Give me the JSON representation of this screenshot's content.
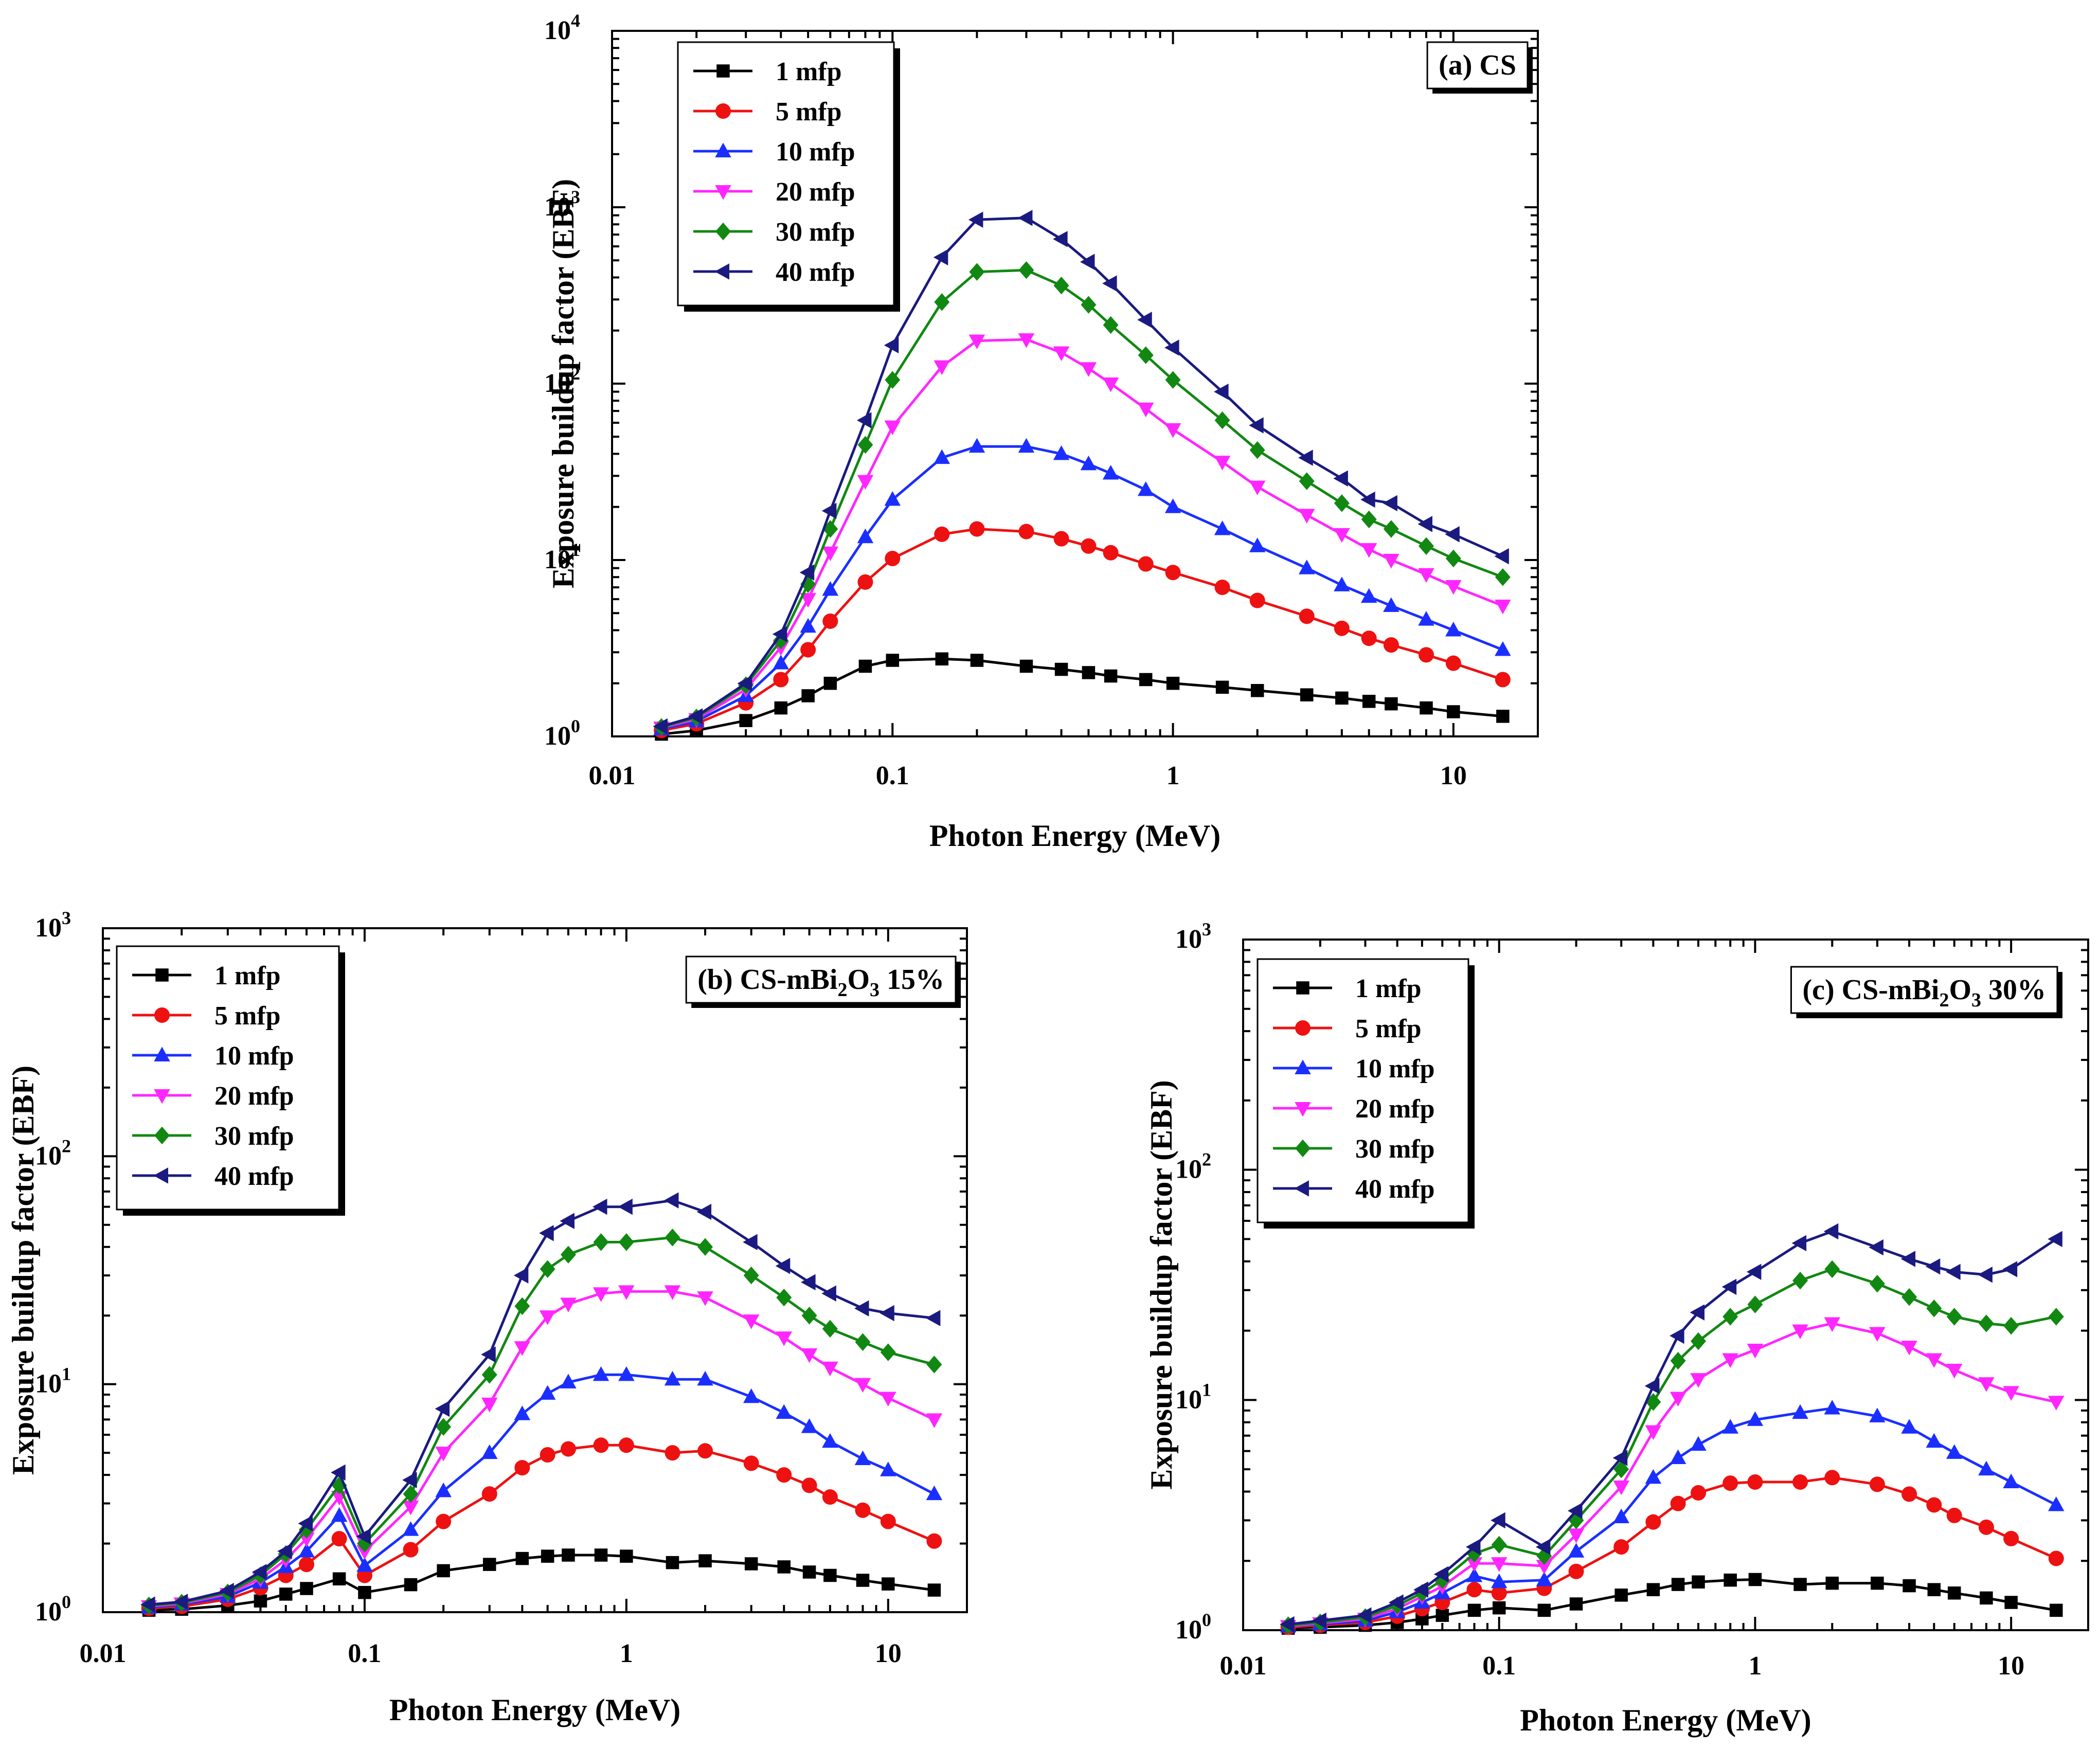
{
  "figure": {
    "panels_count": 3,
    "colors": {
      "1 mfp": "#000000",
      "5 mfp": "#ee1111",
      "10 mfp": "#1a2fff",
      "20 mfp": "#ff26ff",
      "30 mfp": "#118811",
      "40 mfp": "#1a1a80"
    }
  },
  "chart_data": [
    {
      "type": "line",
      "id": "a",
      "panel_label": "(a) CS",
      "panel_label_parts": {
        "prefix": "(a) CS",
        "sub": "",
        "suffix": ""
      },
      "title": "",
      "xlabel": "Photon Energy (MeV)",
      "ylabel": "Exposure buildup factor (EBF)",
      "xscale": "log",
      "yscale": "log",
      "xlim": [
        0.01,
        20
      ],
      "ylim": [
        1,
        10000
      ],
      "x_ticks": [
        "0.01",
        "0.1",
        "1",
        "10"
      ],
      "y_ticks": [
        {
          "base": "10",
          "exp": "0"
        },
        {
          "base": "10",
          "exp": "1"
        },
        {
          "base": "10",
          "exp": "2"
        },
        {
          "base": "10",
          "exp": "3"
        },
        {
          "base": "10",
          "exp": "4"
        }
      ],
      "legend_position": "top-left",
      "x": [
        0.015,
        0.02,
        0.03,
        0.04,
        0.05,
        0.06,
        0.08,
        0.1,
        0.15,
        0.2,
        0.3,
        0.4,
        0.5,
        0.6,
        0.8,
        1,
        1.5,
        2,
        3,
        4,
        5,
        6,
        8,
        10,
        15
      ],
      "series": [
        {
          "name": "1 mfp",
          "marker": "square",
          "values": [
            1.03,
            1.08,
            1.23,
            1.45,
            1.7,
            2.0,
            2.5,
            2.7,
            2.75,
            2.7,
            2.5,
            2.4,
            2.3,
            2.2,
            2.1,
            2.0,
            1.9,
            1.82,
            1.72,
            1.65,
            1.58,
            1.53,
            1.45,
            1.38,
            1.3
          ]
        },
        {
          "name": "5 mfp",
          "marker": "circle",
          "values": [
            1.08,
            1.18,
            1.55,
            2.1,
            3.1,
            4.5,
            7.5,
            10.2,
            14,
            15,
            14.5,
            13.2,
            12,
            11,
            9.5,
            8.5,
            7,
            5.9,
            4.8,
            4.1,
            3.6,
            3.3,
            2.9,
            2.6,
            2.1
          ]
        },
        {
          "name": "10 mfp",
          "marker": "triangle-up",
          "values": [
            1.1,
            1.22,
            1.7,
            2.6,
            4.2,
            6.8,
            13.5,
            22,
            38,
            44,
            44,
            40,
            35,
            31,
            25,
            20,
            15,
            12,
            9,
            7.2,
            6.2,
            5.5,
            4.6,
            4.0,
            3.1
          ]
        },
        {
          "name": "20 mfp",
          "marker": "triangle-down",
          "values": [
            1.12,
            1.25,
            1.85,
            3.2,
            6.0,
            11,
            28,
            57,
            125,
            175,
            178,
            150,
            122,
            100,
            72,
            55,
            36,
            26,
            18,
            14,
            11.5,
            10,
            8.3,
            7.1,
            5.5
          ]
        },
        {
          "name": "30 mfp",
          "marker": "diamond",
          "values": [
            1.13,
            1.28,
            1.95,
            3.5,
            7.3,
            15,
            45,
            105,
            290,
            430,
            440,
            360,
            280,
            215,
            145,
            105,
            62,
            42,
            28,
            21,
            17,
            15,
            12,
            10.2,
            8.0
          ]
        },
        {
          "name": "40 mfp",
          "marker": "triangle-left",
          "values": [
            1.14,
            1.3,
            2.0,
            3.8,
            8.5,
            19,
            62,
            165,
            520,
            850,
            870,
            660,
            490,
            370,
            230,
            160,
            90,
            58,
            38,
            29,
            22,
            21,
            16,
            14,
            10.5
          ]
        }
      ]
    },
    {
      "type": "line",
      "id": "b",
      "panel_label": "(b)  CS-mBi2O3 15%",
      "panel_label_parts": {
        "prefix": "(b)  CS-mBi",
        "sub": "2",
        "mid": "O",
        "sub2": "3",
        "suffix": " 15%"
      },
      "title": "",
      "xlabel": "Photon Energy (MeV)",
      "ylabel": "Exposure buildup factor (EBF)",
      "xscale": "log",
      "yscale": "log",
      "xlim": [
        0.01,
        20
      ],
      "ylim": [
        1,
        1000
      ],
      "x_ticks": [
        "0.01",
        "0.1",
        "1",
        "10"
      ],
      "y_ticks": [
        {
          "base": "10",
          "exp": "0"
        },
        {
          "base": "10",
          "exp": "1"
        },
        {
          "base": "10",
          "exp": "2"
        },
        {
          "base": "10",
          "exp": "3"
        }
      ],
      "legend_position": "top-left",
      "x": [
        0.015,
        0.02,
        0.03,
        0.04,
        0.05,
        0.06,
        0.08,
        0.1,
        0.15,
        0.2,
        0.3,
        0.4,
        0.5,
        0.6,
        0.8,
        1,
        1.5,
        2,
        3,
        4,
        5,
        6,
        8,
        10,
        15
      ],
      "series": [
        {
          "name": "1 mfp",
          "marker": "square",
          "values": [
            1.02,
            1.03,
            1.07,
            1.12,
            1.2,
            1.27,
            1.4,
            1.22,
            1.32,
            1.52,
            1.62,
            1.72,
            1.76,
            1.78,
            1.78,
            1.76,
            1.65,
            1.68,
            1.63,
            1.58,
            1.5,
            1.45,
            1.38,
            1.33,
            1.25
          ]
        },
        {
          "name": "5 mfp",
          "marker": "circle",
          "values": [
            1.04,
            1.06,
            1.14,
            1.28,
            1.45,
            1.62,
            2.1,
            1.45,
            1.88,
            2.5,
            3.3,
            4.3,
            4.9,
            5.2,
            5.4,
            5.4,
            5.0,
            5.1,
            4.5,
            4.0,
            3.6,
            3.2,
            2.8,
            2.5,
            2.05
          ]
        },
        {
          "name": "10 mfp",
          "marker": "triangle-up",
          "values": [
            1.05,
            1.08,
            1.17,
            1.35,
            1.58,
            1.85,
            2.65,
            1.6,
            2.3,
            3.4,
            5.0,
            7.4,
            9.1,
            10.2,
            11,
            11,
            10.5,
            10.5,
            8.8,
            7.5,
            6.5,
            5.6,
            4.7,
            4.2,
            3.3
          ]
        },
        {
          "name": "20 mfp",
          "marker": "triangle-down",
          "values": [
            1.06,
            1.09,
            1.2,
            1.4,
            1.7,
            2.1,
            3.2,
            1.85,
            2.9,
            5.0,
            8.2,
            14.5,
            19.8,
            22.5,
            25,
            25.5,
            25.5,
            24,
            19,
            16,
            13.5,
            11.8,
            10,
            8.7,
            7.0
          ]
        },
        {
          "name": "30 mfp",
          "marker": "diamond",
          "values": [
            1.07,
            1.1,
            1.22,
            1.45,
            1.8,
            2.3,
            3.6,
            2.0,
            3.3,
            6.5,
            11,
            22,
            32,
            37,
            42,
            42,
            44,
            40,
            30,
            24,
            20,
            17.5,
            15.3,
            13.8,
            12.2
          ]
        },
        {
          "name": "40 mfp",
          "marker": "triangle-left",
          "values": [
            1.08,
            1.11,
            1.24,
            1.5,
            1.85,
            2.45,
            4.1,
            2.15,
            3.8,
            7.8,
            13.5,
            30,
            46,
            52,
            60,
            60,
            64,
            57,
            42,
            33,
            28,
            25,
            21.5,
            20.5,
            19.5
          ]
        }
      ]
    },
    {
      "type": "line",
      "id": "c",
      "panel_label": "(c)  CS-mBi2O3 30%",
      "panel_label_parts": {
        "prefix": "(c)  CS-mBi",
        "sub": "2",
        "mid": "O",
        "sub2": "3",
        "suffix": " 30%"
      },
      "title": "",
      "xlabel": "Photon Energy (MeV)",
      "ylabel": "Exposure buildup factor (EBF)",
      "xscale": "log",
      "yscale": "log",
      "xlim": [
        0.01,
        20
      ],
      "ylim": [
        1,
        1000
      ],
      "x_ticks": [
        "0.01",
        "0.1",
        "1",
        "10"
      ],
      "y_ticks": [
        {
          "base": "10",
          "exp": "0"
        },
        {
          "base": "10",
          "exp": "1"
        },
        {
          "base": "10",
          "exp": "2"
        },
        {
          "base": "10",
          "exp": "3"
        }
      ],
      "legend_position": "top-left",
      "x": [
        0.015,
        0.02,
        0.03,
        0.04,
        0.05,
        0.06,
        0.08,
        0.1,
        0.15,
        0.2,
        0.3,
        0.4,
        0.5,
        0.6,
        0.8,
        1,
        1.5,
        2,
        3,
        4,
        5,
        6,
        8,
        10,
        15
      ],
      "series": [
        {
          "name": "1 mfp",
          "marker": "square",
          "values": [
            1.02,
            1.03,
            1.05,
            1.08,
            1.12,
            1.16,
            1.22,
            1.25,
            1.22,
            1.3,
            1.42,
            1.5,
            1.58,
            1.62,
            1.65,
            1.66,
            1.58,
            1.6,
            1.6,
            1.56,
            1.5,
            1.45,
            1.38,
            1.32,
            1.22
          ]
        },
        {
          "name": "5 mfp",
          "marker": "circle",
          "values": [
            1.03,
            1.05,
            1.08,
            1.15,
            1.24,
            1.32,
            1.5,
            1.45,
            1.52,
            1.8,
            2.3,
            2.95,
            3.55,
            3.95,
            4.35,
            4.4,
            4.4,
            4.6,
            4.3,
            3.9,
            3.5,
            3.15,
            2.8,
            2.5,
            2.05
          ]
        },
        {
          "name": "10 mfp",
          "marker": "triangle-up",
          "values": [
            1.04,
            1.06,
            1.1,
            1.2,
            1.32,
            1.45,
            1.72,
            1.62,
            1.65,
            2.2,
            3.1,
            4.6,
            5.6,
            6.4,
            7.6,
            8.2,
            8.8,
            9.2,
            8.5,
            7.6,
            6.6,
            5.9,
            5.0,
            4.4,
            3.5
          ]
        },
        {
          "name": "20 mfp",
          "marker": "triangle-down",
          "values": [
            1.04,
            1.07,
            1.12,
            1.24,
            1.4,
            1.55,
            1.95,
            1.95,
            1.9,
            2.6,
            4.2,
            7.3,
            10.2,
            12.3,
            15,
            16.5,
            20,
            21.5,
            19.5,
            17,
            15,
            13.5,
            11.8,
            10.8,
            9.8
          ]
        },
        {
          "name": "30 mfp",
          "marker": "diamond",
          "values": [
            1.05,
            1.08,
            1.14,
            1.28,
            1.45,
            1.65,
            2.15,
            2.35,
            2.1,
            3.0,
            5.0,
            9.8,
            14.8,
            18,
            23,
            26,
            33,
            37,
            32,
            28,
            25,
            23,
            21.5,
            21,
            23
          ]
        },
        {
          "name": "40 mfp",
          "marker": "triangle-left",
          "values": [
            1.06,
            1.1,
            1.16,
            1.32,
            1.5,
            1.75,
            2.3,
            3.0,
            2.3,
            3.3,
            5.6,
            11.5,
            19,
            24,
            31,
            36,
            48,
            54,
            46,
            41,
            38,
            36,
            35,
            37,
            50
          ]
        }
      ]
    }
  ]
}
